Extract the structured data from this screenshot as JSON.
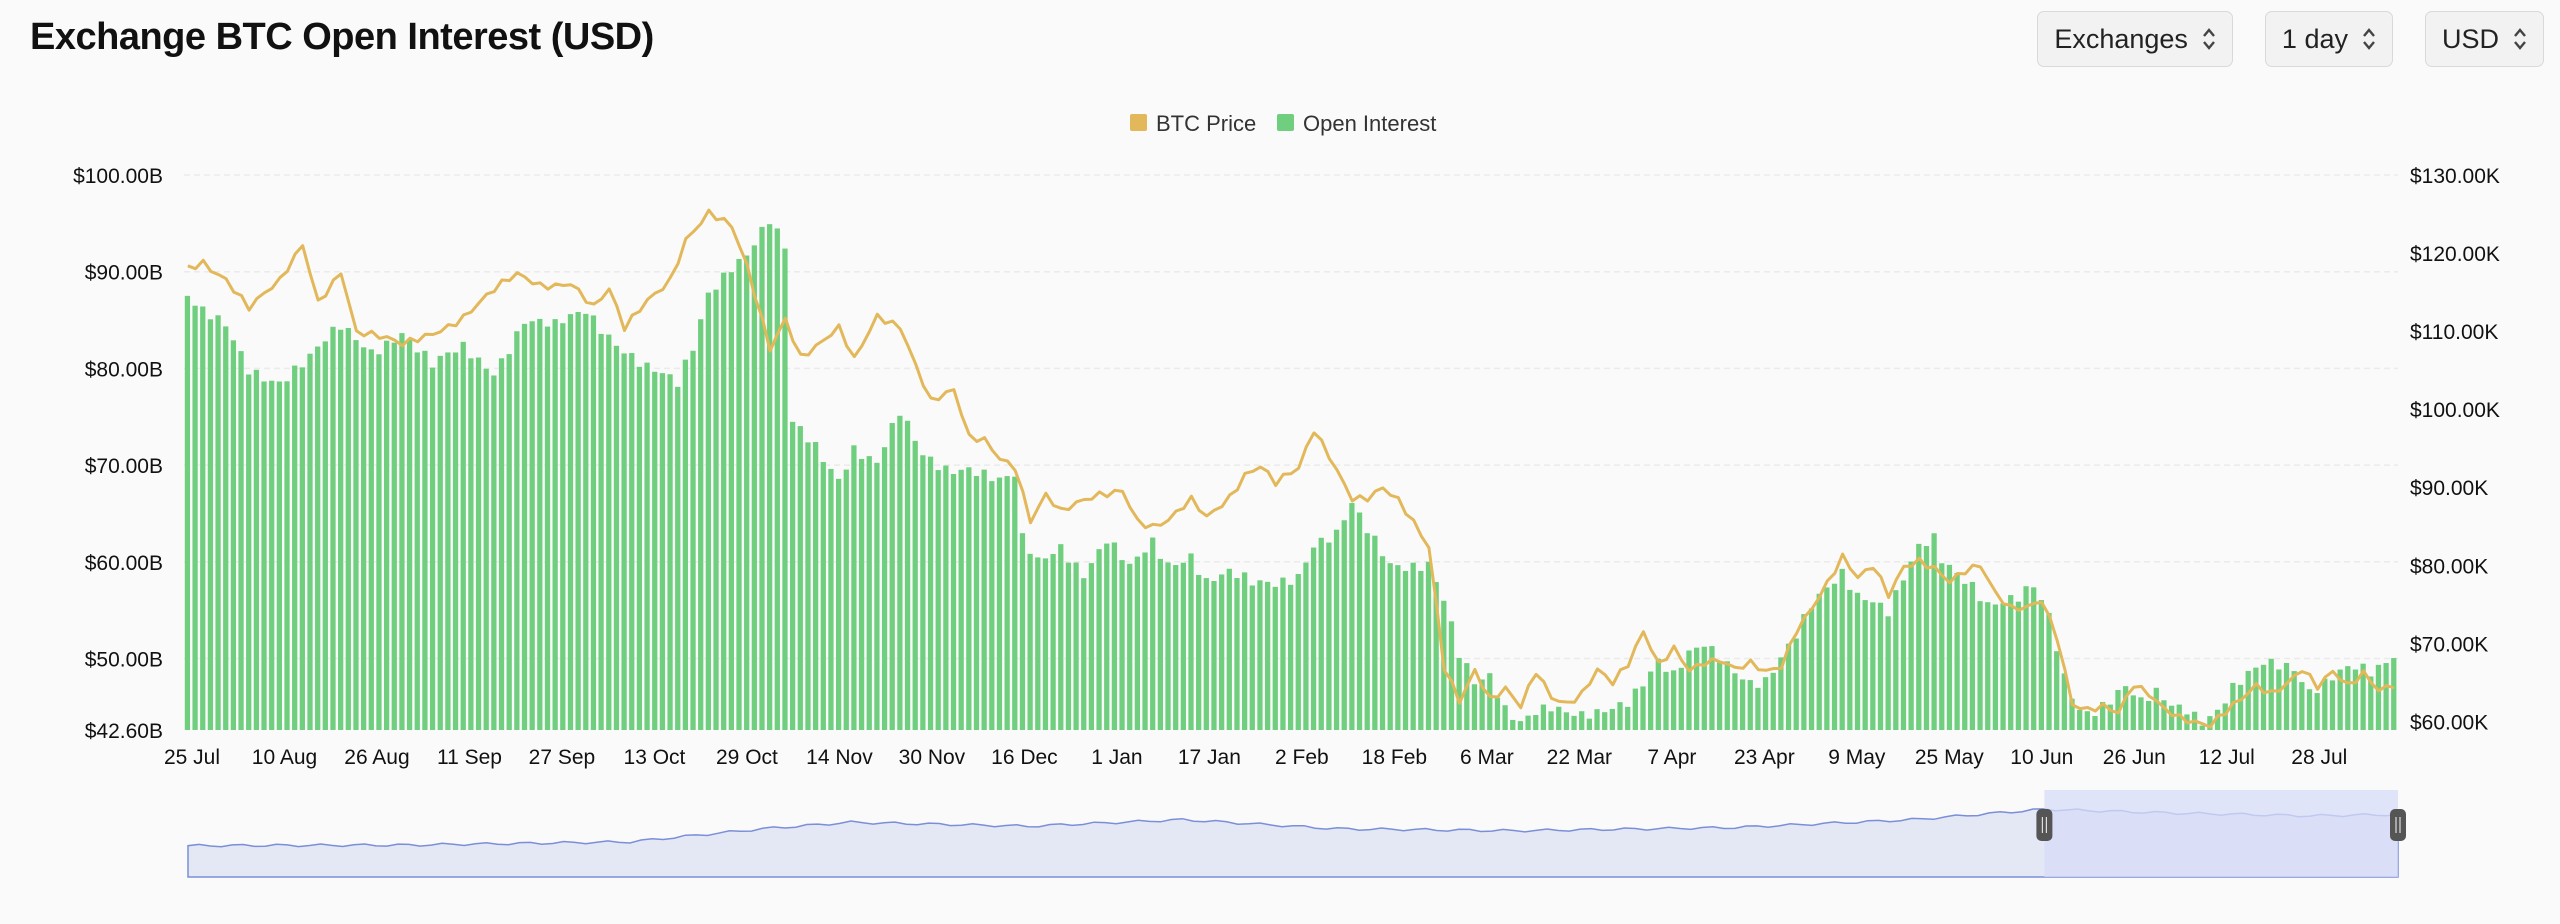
{
  "header": {
    "title": "Exchange BTC Open Interest (USD)",
    "controls": [
      {
        "name": "exchanges-select",
        "label": "Exchanges"
      },
      {
        "name": "interval-select",
        "label": "1 day"
      },
      {
        "name": "currency-select",
        "label": "USD"
      }
    ]
  },
  "colors": {
    "price": "#e2b85a",
    "open_interest": "#6fcf7f",
    "navigator_line": "#7b8fd8",
    "navigator_fill": "#e4e8f5",
    "navigator_selected": "#d7dcf7"
  },
  "chart_data": {
    "type": "bar",
    "legend": {
      "position": "top-center",
      "entries": [
        "BTC Price",
        "Open Interest"
      ]
    },
    "x_ticks": [
      "25 Jul",
      "10 Aug",
      "26 Aug",
      "11 Sep",
      "27 Sep",
      "13 Oct",
      "29 Oct",
      "14 Nov",
      "30 Nov",
      "16 Dec",
      "1 Jan",
      "17 Jan",
      "2 Feb",
      "18 Feb",
      "6 Mar",
      "22 Mar",
      "7 Apr",
      "23 Apr",
      "9 May",
      "25 May",
      "10 Jun",
      "26 Jun",
      "12 Jul",
      "28 Jul"
    ],
    "y_left": {
      "ticks": [
        "$100.00B",
        "$90.00B",
        "$80.00B",
        "$70.00B",
        "$60.00B",
        "$50.00B",
        "$42.60B"
      ],
      "range": [
        42.6,
        100
      ]
    },
    "y_right": {
      "ticks": [
        "$130.00K",
        "$120.00K",
        "$110.00K",
        "$100.00K",
        "$90.00K",
        "$80.00K",
        "$70.00K",
        "$60.00K"
      ],
      "range": [
        58.9,
        130
      ]
    },
    "grid": true,
    "series": [
      {
        "name": "Open Interest",
        "kind": "bar",
        "unit": "B USD",
        "knots": [
          [
            0,
            87.5
          ],
          [
            2,
            85.5
          ],
          [
            5,
            84
          ],
          [
            8,
            80
          ],
          [
            12,
            79
          ],
          [
            16,
            81
          ],
          [
            20,
            84
          ],
          [
            24,
            82
          ],
          [
            28,
            84
          ],
          [
            32,
            80
          ],
          [
            36,
            82
          ],
          [
            40,
            80
          ],
          [
            44,
            85
          ],
          [
            48,
            84
          ],
          [
            52,
            86
          ],
          [
            56,
            83
          ],
          [
            60,
            80
          ],
          [
            64,
            78
          ],
          [
            66,
            82
          ],
          [
            68,
            88
          ],
          [
            71,
            91
          ],
          [
            73,
            92
          ],
          [
            76,
            95
          ],
          [
            78,
            92
          ],
          [
            79,
            74
          ],
          [
            82,
            72
          ],
          [
            85,
            69
          ],
          [
            87,
            72
          ],
          [
            90,
            70
          ],
          [
            93,
            75
          ],
          [
            96,
            71
          ],
          [
            99,
            70
          ],
          [
            102,
            70
          ],
          [
            104,
            69
          ],
          [
            106,
            68
          ],
          [
            108,
            68.5
          ],
          [
            109,
            62
          ],
          [
            111,
            60
          ],
          [
            114,
            62
          ],
          [
            117,
            59
          ],
          [
            120,
            62
          ],
          [
            123,
            59
          ],
          [
            126,
            62
          ],
          [
            128,
            60
          ],
          [
            131,
            61
          ],
          [
            133,
            58
          ],
          [
            136,
            58.5
          ],
          [
            139,
            57.5
          ],
          [
            142,
            58
          ],
          [
            145,
            59
          ],
          [
            147,
            62
          ],
          [
            150,
            62.5
          ],
          [
            152,
            65.5
          ],
          [
            154,
            63
          ],
          [
            157,
            60
          ],
          [
            160,
            60
          ],
          [
            162,
            60
          ],
          [
            164,
            56
          ],
          [
            166,
            50
          ],
          [
            168,
            47
          ],
          [
            170,
            48
          ],
          [
            172,
            45
          ],
          [
            174,
            44
          ],
          [
            176,
            45
          ],
          [
            178,
            45
          ],
          [
            180,
            44
          ],
          [
            182,
            43.5
          ],
          [
            184,
            44
          ],
          [
            186,
            45
          ],
          [
            188,
            46
          ],
          [
            190,
            48
          ],
          [
            192,
            50
          ],
          [
            194,
            48
          ],
          [
            196,
            50
          ],
          [
            198,
            51
          ],
          [
            200,
            50
          ],
          [
            202,
            49
          ],
          [
            204,
            48
          ],
          [
            206,
            48
          ],
          [
            208,
            50
          ],
          [
            210,
            52
          ],
          [
            212,
            55
          ],
          [
            214,
            57
          ],
          [
            216,
            59
          ],
          [
            218,
            57
          ],
          [
            220,
            56.5
          ],
          [
            222,
            55
          ],
          [
            224,
            58
          ],
          [
            226,
            61
          ],
          [
            228,
            62
          ],
          [
            229,
            60
          ],
          [
            231,
            59
          ],
          [
            233,
            58
          ],
          [
            235,
            56
          ],
          [
            237,
            56
          ],
          [
            239,
            56
          ],
          [
            241,
            57
          ],
          [
            243,
            54
          ],
          [
            245,
            48
          ],
          [
            247,
            45
          ],
          [
            249,
            45
          ],
          [
            251,
            46
          ],
          [
            253,
            47
          ],
          [
            255,
            45
          ],
          [
            257,
            46
          ],
          [
            259,
            45
          ],
          [
            261,
            45
          ],
          [
            263,
            44
          ],
          [
            265,
            45
          ],
          [
            267,
            47
          ],
          [
            269,
            48
          ],
          [
            271,
            49
          ],
          [
            273,
            49
          ],
          [
            275,
            49
          ],
          [
            277,
            47
          ],
          [
            279,
            48
          ],
          [
            281,
            49
          ],
          [
            283,
            49
          ],
          [
            285,
            48
          ],
          [
            287,
            49
          ],
          [
            288,
            50
          ]
        ]
      },
      {
        "name": "BTC Price",
        "kind": "line",
        "unit": "K USD",
        "knots": [
          [
            0,
            118
          ],
          [
            2,
            119
          ],
          [
            5,
            117
          ],
          [
            8,
            113
          ],
          [
            12,
            116
          ],
          [
            15,
            121
          ],
          [
            17,
            114
          ],
          [
            20,
            118
          ],
          [
            22,
            110
          ],
          [
            25,
            109
          ],
          [
            28,
            108
          ],
          [
            32,
            110
          ],
          [
            36,
            112
          ],
          [
            40,
            115
          ],
          [
            43,
            117
          ],
          [
            46,
            116
          ],
          [
            50,
            116.5
          ],
          [
            53,
            113
          ],
          [
            55,
            115
          ],
          [
            57,
            110
          ],
          [
            60,
            114
          ],
          [
            63,
            117
          ],
          [
            65,
            122
          ],
          [
            68,
            125
          ],
          [
            71,
            123
          ],
          [
            73,
            118
          ],
          [
            76,
            108
          ],
          [
            78,
            112
          ],
          [
            80,
            107
          ],
          [
            82,
            108
          ],
          [
            85,
            110
          ],
          [
            87,
            106
          ],
          [
            90,
            112
          ],
          [
            93,
            111
          ],
          [
            95,
            106
          ],
          [
            97,
            101
          ],
          [
            100,
            102
          ],
          [
            102,
            96
          ],
          [
            104,
            96
          ],
          [
            106,
            94
          ],
          [
            108,
            93
          ],
          [
            110,
            86
          ],
          [
            112,
            89
          ],
          [
            114,
            86.5
          ],
          [
            117,
            88
          ],
          [
            119,
            89
          ],
          [
            122,
            90
          ],
          [
            124,
            86
          ],
          [
            126,
            85
          ],
          [
            128,
            85.5
          ],
          [
            131,
            88
          ],
          [
            133,
            86
          ],
          [
            136,
            89
          ],
          [
            138,
            92
          ],
          [
            140,
            93
          ],
          [
            142,
            90.5
          ],
          [
            145,
            92
          ],
          [
            147,
            97
          ],
          [
            149,
            94
          ],
          [
            152,
            89
          ],
          [
            154,
            89
          ],
          [
            156,
            90
          ],
          [
            158,
            88
          ],
          [
            160,
            85
          ],
          [
            162,
            82
          ],
          [
            164,
            67
          ],
          [
            166,
            63
          ],
          [
            168,
            67
          ],
          [
            170,
            63
          ],
          [
            172,
            64
          ],
          [
            174,
            61.5
          ],
          [
            176,
            66
          ],
          [
            178,
            63
          ],
          [
            180,
            62.5
          ],
          [
            182,
            64
          ],
          [
            184,
            67
          ],
          [
            186,
            65
          ],
          [
            188,
            67
          ],
          [
            190,
            71
          ],
          [
            192,
            67
          ],
          [
            194,
            69.5
          ],
          [
            196,
            67
          ],
          [
            198,
            68
          ],
          [
            200,
            68
          ],
          [
            202,
            66.5
          ],
          [
            204,
            67
          ],
          [
            206,
            66
          ],
          [
            208,
            67
          ],
          [
            210,
            72
          ],
          [
            212,
            75
          ],
          [
            214,
            78
          ],
          [
            216,
            81
          ],
          [
            218,
            78
          ],
          [
            220,
            79.5
          ],
          [
            222,
            76
          ],
          [
            224,
            80
          ],
          [
            226,
            81
          ],
          [
            228,
            80
          ],
          [
            230,
            78
          ],
          [
            232,
            79
          ],
          [
            234,
            79.5
          ],
          [
            236,
            76
          ],
          [
            238,
            74.5
          ],
          [
            240,
            75
          ],
          [
            242,
            76
          ],
          [
            244,
            71
          ],
          [
            246,
            62
          ],
          [
            248,
            61
          ],
          [
            250,
            61.5
          ],
          [
            252,
            61
          ],
          [
            254,
            65
          ],
          [
            256,
            64
          ],
          [
            258,
            62
          ],
          [
            260,
            60.5
          ],
          [
            262,
            59.5
          ],
          [
            264,
            59
          ],
          [
            266,
            61
          ],
          [
            268,
            63
          ],
          [
            270,
            65
          ],
          [
            272,
            64
          ],
          [
            274,
            65
          ],
          [
            276,
            66.5
          ],
          [
            278,
            64
          ],
          [
            280,
            66
          ],
          [
            282,
            64.5
          ],
          [
            284,
            66.5
          ],
          [
            286,
            64.5
          ],
          [
            288,
            65
          ]
        ]
      }
    ],
    "navigator": {
      "selection": [
        0.84,
        1.0
      ],
      "knots": [
        [
          0,
          0.02
        ],
        [
          0.1,
          0.03
        ],
        [
          0.2,
          0.08
        ],
        [
          0.26,
          0.28
        ],
        [
          0.3,
          0.38
        ],
        [
          0.38,
          0.32
        ],
        [
          0.45,
          0.42
        ],
        [
          0.52,
          0.28
        ],
        [
          0.6,
          0.25
        ],
        [
          0.7,
          0.3
        ],
        [
          0.78,
          0.42
        ],
        [
          0.84,
          0.58
        ],
        [
          0.9,
          0.52
        ],
        [
          0.96,
          0.48
        ],
        [
          1.0,
          0.5
        ]
      ]
    }
  }
}
